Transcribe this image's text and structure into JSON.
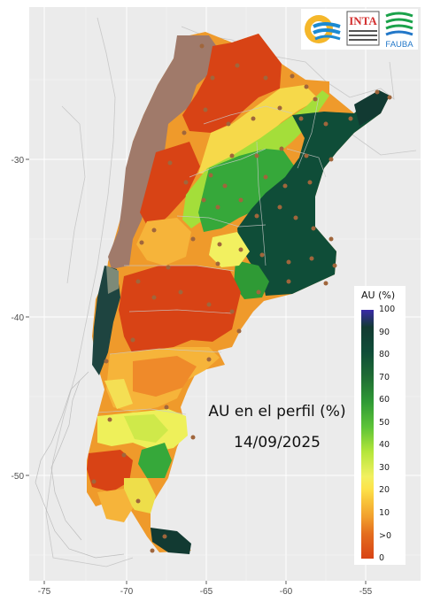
{
  "map": {
    "title": "AU en el perfil (%)",
    "date": "14/09/2025",
    "region": "Argentina"
  },
  "axes": {
    "x_ticks": [
      "-75",
      "-70",
      "-65",
      "-60",
      "-55"
    ],
    "y_ticks": [
      "-30",
      "-40",
      "-50"
    ]
  },
  "legend": {
    "title": "AU (%)",
    "ticks": [
      "100",
      "90",
      "80",
      "70",
      "60",
      "50",
      "40",
      "30",
      "20",
      "10",
      ">0",
      "0"
    ],
    "colors": {
      "100": "#3a2aa8",
      "90": "#123a32",
      "80": "#1f6d34",
      "60": "#2f9a35",
      "50": "#8bd83a",
      "40": "#d6ec45",
      "20": "#fde24a",
      "10": "#f2a12e",
      "0": "#d84315",
      "no_data": "#a07a6a"
    }
  },
  "logos": {
    "inta": "INTA",
    "fauba": "FAUBA"
  }
}
